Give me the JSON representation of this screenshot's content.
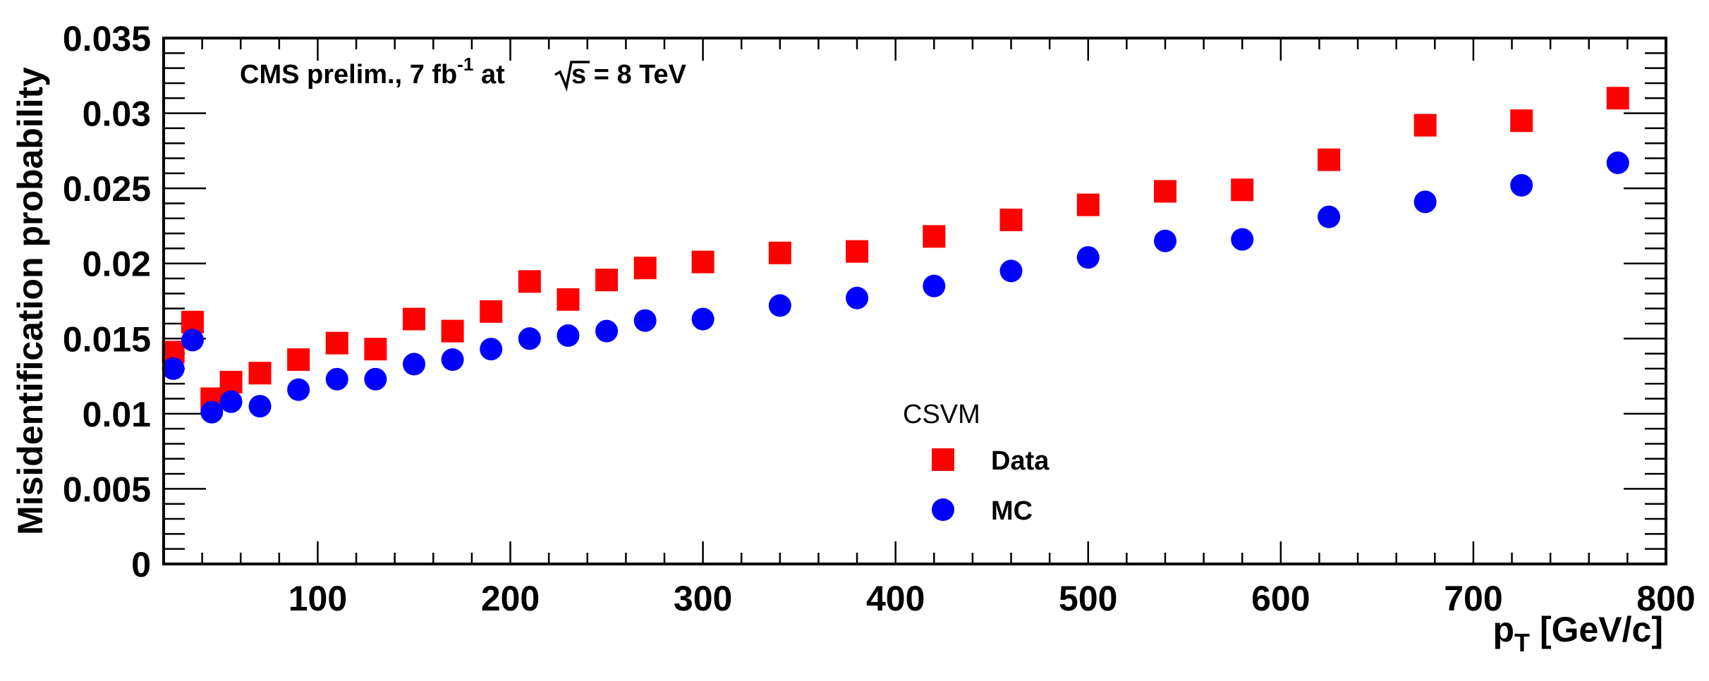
{
  "chart_data": {
    "type": "scatter",
    "title": "",
    "xlabel": "p",
    "xlabel_sub": "T",
    "xlabel_unit": " [GeV/c]",
    "ylabel": "Misidentification probability",
    "xlim": [
      20,
      800
    ],
    "ylim": [
      0,
      0.035
    ],
    "xticks": [
      100,
      200,
      300,
      400,
      500,
      600,
      700,
      800
    ],
    "xtick_labels": [
      "100",
      "200",
      "300",
      "400",
      "500",
      "600",
      "700",
      "800"
    ],
    "yticks": [
      0,
      0.005,
      0.01,
      0.015,
      0.02,
      0.025,
      0.03,
      0.035
    ],
    "ytick_labels": [
      "0",
      "0.005",
      "0.01",
      "0.015",
      "0.02",
      "0.025",
      "0.03",
      "0.035"
    ],
    "grid": false,
    "annotation": {
      "part1": "CMS prelim., 7 fb",
      "sup": "-1",
      "part2": " at ",
      "sqrt_arg": "s",
      "part3": " = 8 TeV"
    },
    "legend": {
      "header": "CSVM",
      "placement": "center-bottom"
    },
    "series": [
      {
        "name": "Data",
        "marker": "square",
        "color": "#ff0000",
        "x": [
          25,
          35,
          45,
          55,
          70,
          90,
          110,
          130,
          150,
          170,
          190,
          210,
          230,
          250,
          270,
          300,
          340,
          380,
          420,
          460,
          500,
          540,
          580,
          625,
          675,
          725,
          775
        ],
        "y": [
          0.0141,
          0.0161,
          0.011,
          0.0121,
          0.0127,
          0.0136,
          0.0147,
          0.0143,
          0.0163,
          0.0155,
          0.0168,
          0.0188,
          0.0176,
          0.0189,
          0.0197,
          0.0201,
          0.0207,
          0.0208,
          0.0218,
          0.0229,
          0.0239,
          0.0248,
          0.0249,
          0.0269,
          0.0292,
          0.0295,
          0.031
        ]
      },
      {
        "name": "MC",
        "marker": "circle",
        "color": "#0000ff",
        "x": [
          25,
          35,
          45,
          55,
          70,
          90,
          110,
          130,
          150,
          170,
          190,
          210,
          230,
          250,
          270,
          300,
          340,
          380,
          420,
          460,
          500,
          540,
          580,
          625,
          675,
          725,
          775
        ],
        "y": [
          0.013,
          0.0149,
          0.0101,
          0.0108,
          0.0105,
          0.0116,
          0.0123,
          0.0123,
          0.0133,
          0.0136,
          0.0143,
          0.015,
          0.0152,
          0.0155,
          0.0162,
          0.0163,
          0.0172,
          0.0177,
          0.0185,
          0.0195,
          0.0204,
          0.0215,
          0.0216,
          0.0231,
          0.0241,
          0.0252,
          0.0267
        ]
      }
    ]
  }
}
